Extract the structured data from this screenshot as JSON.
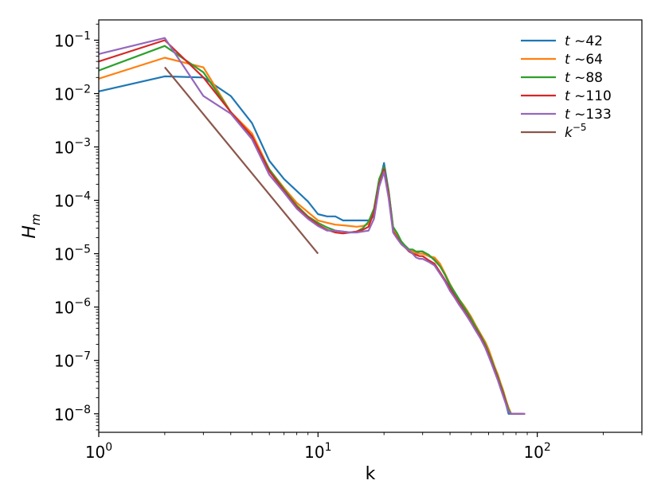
{
  "chart_data": {
    "type": "line",
    "title": "",
    "xlabel": "k",
    "ylabel": "H_m",
    "xscale": "log",
    "yscale": "log",
    "xlim": [
      1,
      300
    ],
    "ylim": [
      4.5e-09,
      0.24
    ],
    "grid": false,
    "legend_position": "top-right",
    "x_ticks": [
      {
        "value": 1,
        "base": "10",
        "exp": "0"
      },
      {
        "value": 10,
        "base": "10",
        "exp": "1"
      },
      {
        "value": 100,
        "base": "10",
        "exp": "2"
      }
    ],
    "y_ticks": [
      {
        "value": 1e-08,
        "base": "10",
        "exp": "−8"
      },
      {
        "value": 1e-07,
        "base": "10",
        "exp": "−7"
      },
      {
        "value": 1e-06,
        "base": "10",
        "exp": "−6"
      },
      {
        "value": 1e-05,
        "base": "10",
        "exp": "−5"
      },
      {
        "value": 0.0001,
        "base": "10",
        "exp": "−4"
      },
      {
        "value": 0.001,
        "base": "10",
        "exp": "−3"
      },
      {
        "value": 0.01,
        "base": "10",
        "exp": "−2"
      },
      {
        "value": 0.1,
        "base": "10",
        "exp": "−1"
      }
    ],
    "series": [
      {
        "name": "t ~42",
        "legend_var": "t",
        "legend_rest": " ~42",
        "color": "#1f77b4",
        "x": [
          1,
          2,
          3,
          4,
          5,
          6,
          7,
          8,
          9,
          10,
          11,
          12,
          13,
          14,
          15,
          16,
          17,
          18,
          19,
          20,
          21,
          22,
          23,
          24,
          25,
          26,
          27,
          28,
          29,
          30,
          32,
          34,
          36,
          38,
          40,
          42,
          44,
          46,
          48,
          50,
          52,
          55,
          58,
          60,
          62,
          64,
          66,
          68,
          70,
          72,
          74,
          76,
          78,
          80,
          82,
          84
        ],
        "y": [
          0.011,
          0.021,
          0.02,
          0.009,
          0.0028,
          0.00055,
          0.00025,
          0.00015,
          9.5e-05,
          5.5e-05,
          5e-05,
          5e-05,
          4.2e-05,
          4.2e-05,
          4.2e-05,
          4.2e-05,
          4.2e-05,
          5e-05,
          0.0002,
          0.0005,
          0.00015,
          3e-05,
          2.2e-05,
          1.6e-05,
          1.3e-05,
          1.2e-05,
          1.1e-05,
          1e-05,
          1.1e-05,
          1.1e-05,
          9e-06,
          8e-06,
          6e-06,
          4e-06,
          2.5e-06,
          1.8e-06,
          1.3e-06,
          1e-06,
          8e-07,
          6e-07,
          4.5e-07,
          3e-07,
          2e-07,
          1.5e-07,
          1e-07,
          7e-08,
          5e-08,
          3.5e-08,
          2.5e-08,
          1.5e-08,
          1e-08,
          1e-08,
          1e-08,
          1e-08,
          1e-08,
          1e-08
        ]
      },
      {
        "name": "t ~64",
        "legend_var": "t",
        "legend_rest": " ~64",
        "color": "#ff7f0e",
        "x": [
          1,
          2,
          3,
          4,
          5,
          6,
          7,
          8,
          9,
          10,
          11,
          12,
          13,
          14,
          15,
          16,
          17,
          18,
          19,
          20,
          21,
          22,
          23,
          24,
          25,
          26,
          27,
          28,
          29,
          30,
          32,
          34,
          36,
          38,
          40,
          42,
          44,
          46,
          48,
          50,
          52,
          55,
          58,
          60,
          62,
          64,
          66,
          68,
          70,
          72,
          74,
          76,
          78,
          80,
          82,
          84,
          86
        ],
        "y": [
          0.019,
          0.047,
          0.031,
          0.0045,
          0.0018,
          0.00038,
          0.00017,
          9e-05,
          6e-05,
          4.2e-05,
          3.8e-05,
          3.5e-05,
          3.4e-05,
          3.3e-05,
          3.2e-05,
          3.3e-05,
          3.6e-05,
          6e-05,
          0.00022,
          0.00042,
          0.00012,
          2.8e-05,
          2.1e-05,
          1.6e-05,
          1.4e-05,
          1.2e-05,
          1.1e-05,
          1e-05,
          1e-05,
          1e-05,
          9e-06,
          8.5e-06,
          6.5e-06,
          4.2e-06,
          2.7e-06,
          1.9e-06,
          1.4e-06,
          1.1e-06,
          8.5e-07,
          6.5e-07,
          4.8e-07,
          3.2e-07,
          2.2e-07,
          1.6e-07,
          1.1e-07,
          7.5e-08,
          5.5e-08,
          3.8e-08,
          2.7e-08,
          1.8e-08,
          1.3e-08,
          1e-08,
          1e-08,
          1e-08,
          1e-08,
          1e-08,
          1e-08
        ]
      },
      {
        "name": "t ~88",
        "legend_var": "t",
        "legend_rest": " ~88",
        "color": "#2ca02c",
        "x": [
          1,
          2,
          3,
          4,
          5,
          6,
          7,
          8,
          9,
          10,
          11,
          12,
          13,
          14,
          15,
          16,
          17,
          18,
          19,
          20,
          21,
          22,
          23,
          24,
          25,
          26,
          27,
          28,
          29,
          30,
          32,
          34,
          36,
          38,
          40,
          42,
          44,
          46,
          48,
          50,
          52,
          55,
          58,
          60,
          62,
          64,
          66,
          68,
          70,
          72,
          74,
          76,
          78,
          80,
          82,
          84,
          86
        ],
        "y": [
          0.027,
          0.078,
          0.025,
          0.0045,
          0.0015,
          0.00038,
          0.00016,
          8e-05,
          5e-05,
          3.8e-05,
          3.1e-05,
          2.7e-05,
          2.6e-05,
          2.5e-05,
          2.6e-05,
          3e-05,
          4e-05,
          7e-05,
          0.00025,
          0.00042,
          0.00015,
          3.2e-05,
          2.4e-05,
          1.7e-05,
          1.4e-05,
          1.2e-05,
          1.2e-05,
          1.1e-05,
          1.1e-05,
          1.1e-05,
          9.5e-06,
          7.5e-06,
          5.8e-06,
          4e-06,
          2.6e-06,
          1.9e-06,
          1.4e-06,
          1.05e-06,
          8e-07,
          6e-07,
          4.5e-07,
          3e-07,
          2e-07,
          1.4e-07,
          1e-07,
          7e-08,
          5e-08,
          3.5e-08,
          2.5e-08,
          1.7e-08,
          1.2e-08,
          1e-08,
          1e-08,
          1e-08,
          1e-08,
          1e-08,
          1e-08
        ]
      },
      {
        "name": "t ~110",
        "legend_var": "t",
        "legend_rest": " ~110",
        "color": "#d62728",
        "x": [
          1,
          2,
          3,
          4,
          5,
          6,
          7,
          8,
          9,
          10,
          11,
          12,
          13,
          14,
          15,
          16,
          17,
          18,
          19,
          20,
          21,
          22,
          23,
          24,
          25,
          26,
          27,
          28,
          29,
          30,
          32,
          34,
          36,
          38,
          40,
          42,
          44,
          46,
          48,
          50,
          52,
          55,
          58,
          60,
          62,
          64,
          66,
          68,
          70,
          72,
          74,
          76,
          78,
          80,
          82,
          84,
          86,
          88
        ],
        "y": [
          0.04,
          0.1,
          0.02,
          0.0045,
          0.0016,
          0.00035,
          0.00015,
          7.5e-05,
          4.8e-05,
          3.5e-05,
          2.8e-05,
          2.5e-05,
          2.4e-05,
          2.5e-05,
          2.6e-05,
          2.8e-05,
          3.2e-05,
          6e-05,
          0.0002,
          0.00038,
          0.00013,
          2.6e-05,
          2e-05,
          1.5e-05,
          1.3e-05,
          1.1e-05,
          1e-05,
          9.5e-06,
          9e-06,
          9e-06,
          7.5e-06,
          6.5e-06,
          4.5e-06,
          3.2e-06,
          2.2e-06,
          1.6e-06,
          1.2e-06,
          9e-07,
          7e-07,
          5.2e-07,
          4e-07,
          2.8e-07,
          1.8e-07,
          1.3e-07,
          9e-08,
          6.5e-08,
          4.6e-08,
          3.2e-08,
          2.3e-08,
          1.6e-08,
          1.1e-08,
          1e-08,
          1e-08,
          1e-08,
          1e-08,
          1e-08,
          1e-08,
          1e-08
        ]
      },
      {
        "name": "t ~133",
        "legend_var": "t",
        "legend_rest": " ~133",
        "color": "#9467bd",
        "x": [
          1,
          2,
          3,
          4,
          5,
          6,
          7,
          8,
          9,
          10,
          11,
          12,
          13,
          14,
          15,
          16,
          17,
          18,
          19,
          20,
          21,
          22,
          23,
          24,
          25,
          26,
          27,
          28,
          29,
          30,
          32,
          34,
          36,
          38,
          40,
          42,
          44,
          46,
          48,
          50,
          52,
          55,
          58,
          60,
          62,
          64,
          66,
          68,
          70,
          72,
          74,
          76,
          78,
          80,
          82,
          84,
          86,
          88
        ],
        "y": [
          0.055,
          0.11,
          0.009,
          0.0042,
          0.0014,
          0.0003,
          0.00014,
          7e-05,
          4.5e-05,
          3.3e-05,
          2.7e-05,
          2.7e-05,
          2.6e-05,
          2.5e-05,
          2.5e-05,
          2.6e-05,
          2.7e-05,
          4.5e-05,
          0.00018,
          0.00034,
          0.00011,
          2.5e-05,
          1.9e-05,
          1.5e-05,
          1.3e-05,
          1.15e-05,
          1e-05,
          8.5e-06,
          8e-06,
          8e-06,
          7e-06,
          6e-06,
          4.2e-06,
          3e-06,
          2e-06,
          1.5e-06,
          1.1e-06,
          8.5e-07,
          6.5e-07,
          5e-07,
          3.8e-07,
          2.6e-07,
          1.7e-07,
          1.2e-07,
          8.5e-08,
          6e-08,
          4.3e-08,
          3e-08,
          2.1e-08,
          1.5e-08,
          1.1e-08,
          1e-08,
          1e-08,
          1e-08,
          1e-08,
          1e-08,
          1e-08,
          1e-08
        ]
      },
      {
        "name": "k^-5",
        "legend_var": "k",
        "legend_rest": "",
        "legend_sup": "−5",
        "color": "#8c564b",
        "x": [
          2,
          10
        ],
        "y": [
          0.03125,
          1e-05
        ]
      }
    ]
  }
}
